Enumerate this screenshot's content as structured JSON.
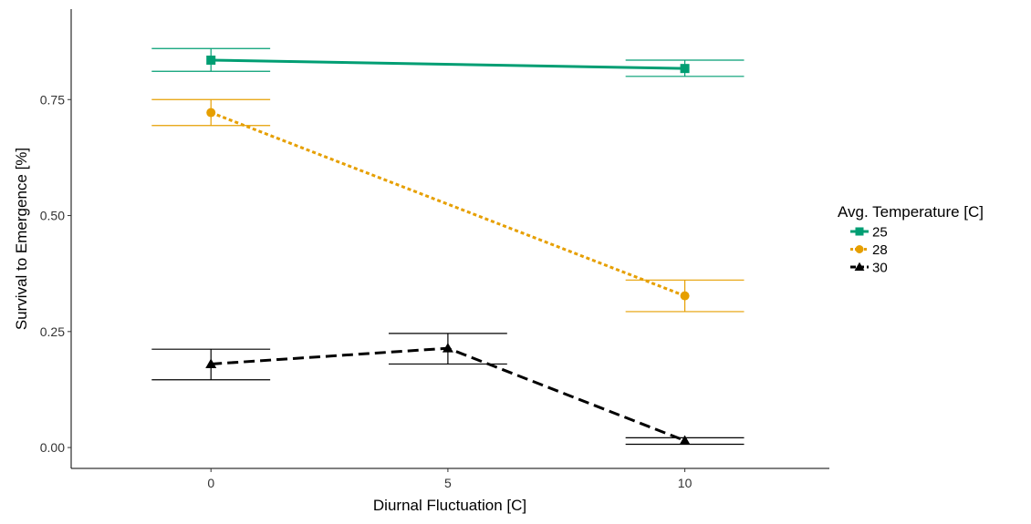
{
  "chart_data": {
    "type": "line",
    "xlabel": "Diurnal Fluctuation [C]",
    "ylabel": "Survival to Emergence [%]",
    "xlim": [
      -2.95,
      13.05
    ],
    "ylim": [
      -0.045,
      0.945
    ],
    "x_ticks": [
      0,
      5,
      10
    ],
    "x_tick_labels": [
      "0",
      "5",
      "10"
    ],
    "y_ticks": [
      0,
      0.25,
      0.5,
      0.75
    ],
    "y_tick_labels": [
      "0.00",
      "0.25",
      "0.50",
      "0.75"
    ],
    "grid": false,
    "legend": {
      "title": "Avg. Temperature [C]",
      "position": "right"
    },
    "error_bar_halfwidth_x": 1.25,
    "series": [
      {
        "name": "25",
        "color": "#009E73",
        "marker": "square",
        "line": "solid",
        "x": [
          0,
          10
        ],
        "y": [
          0.835,
          0.817
        ],
        "ymin": [
          0.811,
          0.8
        ],
        "ymax": [
          0.86,
          0.835
        ]
      },
      {
        "name": "28",
        "color": "#E69F00",
        "marker": "circle",
        "line": "dotted",
        "x": [
          0,
          10
        ],
        "y": [
          0.722,
          0.327
        ],
        "ymin": [
          0.694,
          0.293
        ],
        "ymax": [
          0.75,
          0.361
        ]
      },
      {
        "name": "30",
        "color": "#000000",
        "marker": "triangle",
        "line": "dashed",
        "x": [
          0,
          5,
          10
        ],
        "y": [
          0.18,
          0.214,
          0.015
        ],
        "ymin": [
          0.146,
          0.18,
          0.007
        ],
        "ymax": [
          0.212,
          0.246,
          0.021
        ]
      }
    ]
  }
}
